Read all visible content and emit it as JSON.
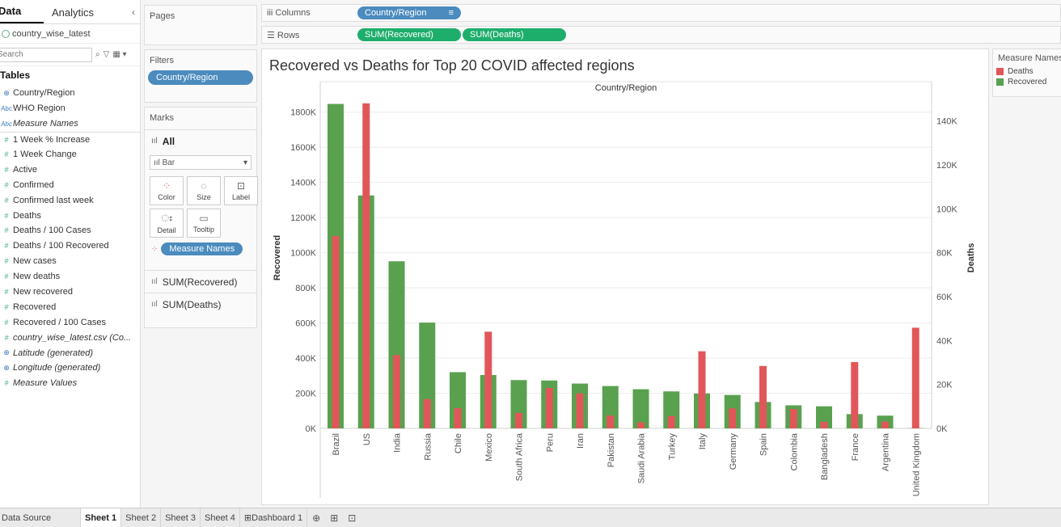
{
  "data_pane": {
    "tab_data": "Data",
    "tab_analytics": "Analytics",
    "datasource": "country_wise_latest",
    "search_placeholder": "Search",
    "tables_label": "Tables",
    "fields": [
      {
        "name": "Country/Region",
        "kind": "geo",
        "italic": false
      },
      {
        "name": "WHO Region",
        "kind": "dim",
        "italic": false
      },
      {
        "name": "Measure Names",
        "kind": "dim",
        "italic": true
      },
      {
        "name": "1 Week % Increase",
        "kind": "measure",
        "italic": false
      },
      {
        "name": "1 Week Change",
        "kind": "measure",
        "italic": false
      },
      {
        "name": "Active",
        "kind": "measure",
        "italic": false
      },
      {
        "name": "Confirmed",
        "kind": "measure",
        "italic": false
      },
      {
        "name": "Confirmed last week",
        "kind": "measure",
        "italic": false
      },
      {
        "name": "Deaths",
        "kind": "measure",
        "italic": false
      },
      {
        "name": "Deaths / 100 Cases",
        "kind": "measure",
        "italic": false
      },
      {
        "name": "Deaths / 100 Recovered",
        "kind": "measure",
        "italic": false
      },
      {
        "name": "New cases",
        "kind": "measure",
        "italic": false
      },
      {
        "name": "New deaths",
        "kind": "measure",
        "italic": false
      },
      {
        "name": "New recovered",
        "kind": "measure",
        "italic": false
      },
      {
        "name": "Recovered",
        "kind": "measure",
        "italic": false
      },
      {
        "name": "Recovered / 100 Cases",
        "kind": "measure",
        "italic": false
      },
      {
        "name": "country_wise_latest.csv (Co...",
        "kind": "measure",
        "italic": true
      },
      {
        "name": "Latitude (generated)",
        "kind": "geo",
        "italic": true
      },
      {
        "name": "Longitude (generated)",
        "kind": "geo",
        "italic": true
      },
      {
        "name": "Measure Values",
        "kind": "measure",
        "italic": true
      }
    ]
  },
  "pages": {
    "title": "Pages"
  },
  "filters": {
    "title": "Filters",
    "pill": "Country/Region"
  },
  "marks": {
    "title": "Marks",
    "all_label": "All",
    "mark_type": "Bar",
    "buttons": [
      "Color",
      "Size",
      "Label",
      "Detail",
      "Tooltip"
    ],
    "color_pill": "Measure Names",
    "rows": [
      "SUM(Recovered)",
      "SUM(Deaths)"
    ]
  },
  "shelves": {
    "columns_label": "Columns",
    "columns_pill": "Country/Region",
    "rows_label": "Rows",
    "rows_pills": [
      "SUM(Recovered)",
      "SUM(Deaths)"
    ]
  },
  "legend": {
    "title": "Measure Names",
    "items": [
      {
        "label": "Deaths",
        "color": "#e15759"
      },
      {
        "label": "Recovered",
        "color": "#59a14f"
      }
    ]
  },
  "bottom_tabs": {
    "data_source": "Data Source",
    "sheets": [
      "Sheet 1",
      "Sheet 2",
      "Sheet 3",
      "Sheet 4"
    ],
    "dashboard": "Dashboard 1"
  },
  "chart_data": {
    "type": "bar",
    "title": "Recovered vs Deaths for Top 20 COVID affected regions",
    "xlabel": "Country/Region",
    "categories": [
      "Brazil",
      "US",
      "India",
      "Russia",
      "Chile",
      "Mexico",
      "South Africa",
      "Peru",
      "Iran",
      "Pakistan",
      "Saudi Arabia",
      "Turkey",
      "Italy",
      "Germany",
      "Spain",
      "Colombia",
      "Bangladesh",
      "France",
      "Argentina",
      "United Kingdom"
    ],
    "series": [
      {
        "name": "Recovered",
        "axis": "left",
        "color": "#59a14f",
        "values": [
          1846641,
          1325804,
          951166,
          602249,
          319954,
          303810,
          274925,
          272547,
          255144,
          241026,
          222936,
          210469,
          198593,
          190314,
          150376,
          131161,
          125683,
          81212,
          72575,
          1437
        ]
      },
      {
        "name": "Deaths",
        "axis": "right",
        "color": "#e15759",
        "values": [
          87618,
          148011,
          33408,
          13334,
          9187,
          44022,
          7067,
          18418,
          15912,
          5842,
          2760,
          5630,
          35112,
          9125,
          28432,
          8777,
          3000,
          30212,
          3059,
          45844
        ]
      }
    ],
    "left_axis": {
      "label": "Recovered",
      "ylim": [
        0,
        1900000
      ],
      "ticks": [
        "0K",
        "200K",
        "400K",
        "600K",
        "800K",
        "1000K",
        "1200K",
        "1400K",
        "1600K",
        "1800K"
      ]
    },
    "right_axis": {
      "label": "Deaths",
      "ylim": [
        0,
        152000
      ],
      "ticks": [
        "0K",
        "20K",
        "40K",
        "60K",
        "80K",
        "100K",
        "120K",
        "140K"
      ]
    },
    "grid": true
  }
}
